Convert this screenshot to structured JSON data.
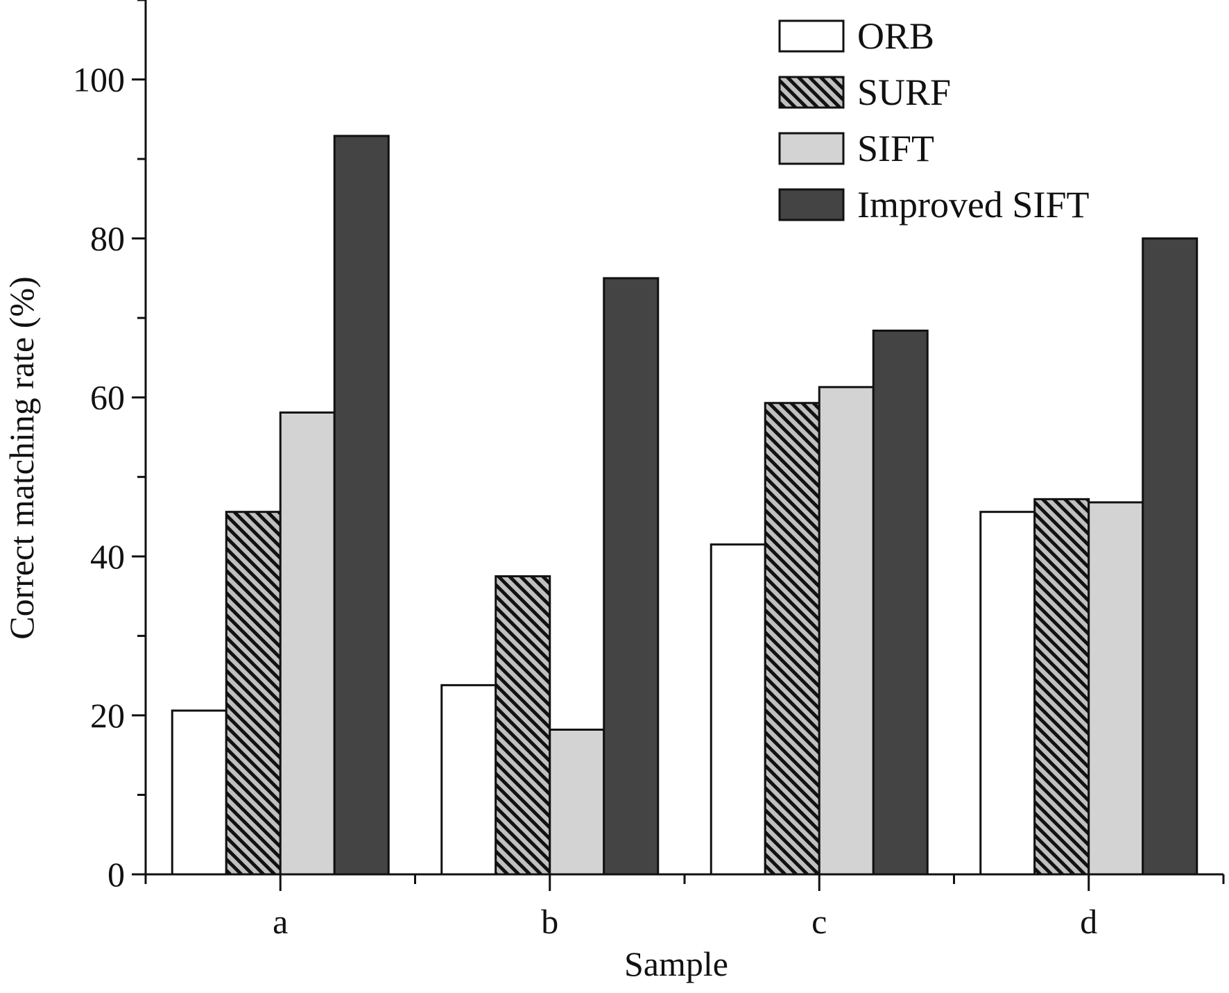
{
  "chart_data": {
    "type": "bar",
    "title": "",
    "xlabel": "Sample",
    "ylabel": "Correct matching rate (%)",
    "categories": [
      "a",
      "b",
      "c",
      "d"
    ],
    "series": [
      {
        "name": "ORB",
        "values": [
          20.6,
          23.8,
          41.5,
          45.6
        ],
        "fill": "#ffffff",
        "pattern": "none"
      },
      {
        "name": "SURF",
        "values": [
          45.6,
          37.5,
          59.3,
          47.2
        ],
        "fill": "#c0c0c0",
        "pattern": "diagonal-hatch"
      },
      {
        "name": "SIFT",
        "values": [
          58.1,
          18.2,
          61.3,
          46.8
        ],
        "fill": "#d3d3d3",
        "pattern": "none"
      },
      {
        "name": "Improved SIFT",
        "values": [
          92.9,
          75.0,
          68.4,
          80.0
        ],
        "fill": "#444444",
        "pattern": "none"
      }
    ],
    "ylim": [
      0,
      110
    ],
    "yticks": [
      "0",
      "20",
      "40",
      "60",
      "80",
      "100"
    ],
    "grid": false,
    "legend_position": "top-right"
  },
  "colors": {
    "axis": "#111111",
    "bar_stroke": "#111111",
    "hatch_line": "#111111"
  }
}
